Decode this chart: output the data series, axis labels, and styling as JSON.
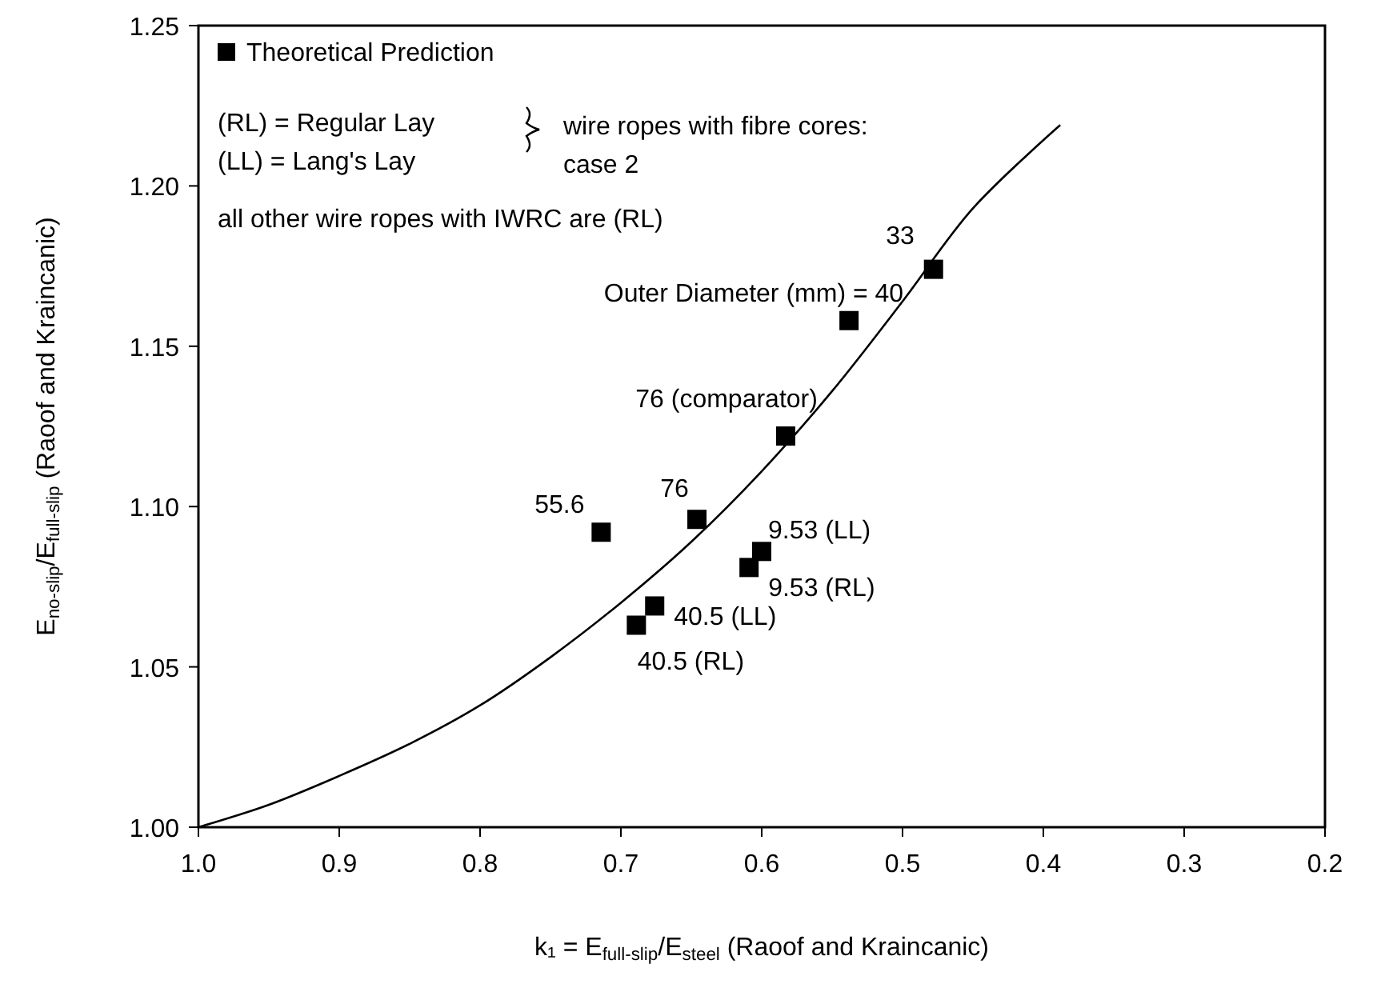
{
  "chart_data": {
    "type": "scatter",
    "xlabel": "k₁ = E$_{full-slip}$/E$_{steel}$ (Raoof and Kraincanic)",
    "ylabel": "E$_{no-slip}$/E$_{full-slip}$ (Raoof and Kraincanic)",
    "xlim": [
      1.0,
      0.2
    ],
    "ylim": [
      1.0,
      1.25
    ],
    "xticks": [
      {
        "value": 1.0,
        "label": "1.0"
      },
      {
        "value": 0.9,
        "label": "0.9"
      },
      {
        "value": 0.8,
        "label": "0.8"
      },
      {
        "value": 0.7,
        "label": "0.7"
      },
      {
        "value": 0.6,
        "label": "0.6"
      },
      {
        "value": 0.5,
        "label": "0.5"
      },
      {
        "value": 0.4,
        "label": "0.4"
      },
      {
        "value": 0.3,
        "label": "0.3"
      },
      {
        "value": 0.2,
        "label": "0.2"
      }
    ],
    "yticks": [
      {
        "value": 1.0,
        "label": "1.00"
      },
      {
        "value": 1.05,
        "label": "1.05"
      },
      {
        "value": 1.1,
        "label": "1.10"
      },
      {
        "value": 1.15,
        "label": "1.15"
      },
      {
        "value": 1.2,
        "label": "1.20"
      },
      {
        "value": 1.25,
        "label": "1.25"
      }
    ],
    "grid": false,
    "legend": "top left",
    "series": [
      {
        "type": "line",
        "color": "#000000",
        "line_style": "solid",
        "marker": "none",
        "x": [
          1.0,
          0.95,
          0.9,
          0.85,
          0.8,
          0.75,
          0.7,
          0.65,
          0.6,
          0.55,
          0.5,
          0.45,
          0.388
        ],
        "values": [
          1.0,
          1.007,
          1.016,
          1.026,
          1.038,
          1.053,
          1.07,
          1.089,
          1.111,
          1.136,
          1.164,
          1.193,
          1.219
        ]
      },
      {
        "name": "Theoretical Prediction",
        "color": "#000000",
        "marker": "square",
        "x": [
          0.478,
          0.538,
          0.583,
          0.646,
          0.714,
          0.6,
          0.609,
          0.676,
          0.689
        ],
        "values": [
          1.174,
          1.158,
          1.122,
          1.096,
          1.092,
          1.086,
          1.081,
          1.069,
          1.063
        ]
      }
    ],
    "annotations": [
      {
        "text": "33",
        "x": 0.478,
        "y": 1.174
      },
      {
        "text": "Outer Diameter (mm) = 40",
        "x": 0.538,
        "y": 1.158
      },
      {
        "text": "76 (comparator)",
        "x": 0.583,
        "y": 1.122
      },
      {
        "text": "76",
        "x": 0.646,
        "y": 1.096
      },
      {
        "text": "55.6",
        "x": 0.714,
        "y": 1.092
      },
      {
        "text": "9.53 (LL)",
        "x": 0.6,
        "y": 1.086
      },
      {
        "text": "9.53 (RL)",
        "x": 0.609,
        "y": 1.081
      },
      {
        "text": "40.5 (LL)",
        "x": 0.676,
        "y": 1.069
      },
      {
        "text": "40.5 (RL)",
        "x": 0.689,
        "y": 1.063
      },
      "(RL) = Regular Lay",
      "(LL) = Lang's Lay",
      "wire ropes with fibre cores:\ncase 2",
      "all other wire ropes with IWRC are (RL)"
    ]
  }
}
